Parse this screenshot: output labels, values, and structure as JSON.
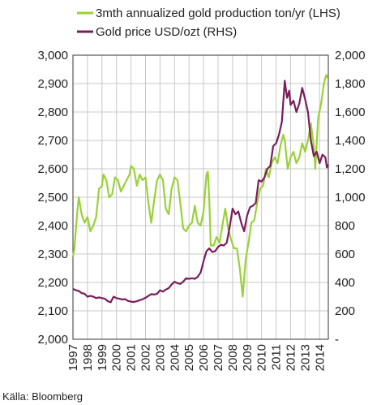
{
  "chart_data": {
    "type": "line",
    "title": "",
    "xlabel": "",
    "ylabel_left": "",
    "ylabel_right": "",
    "grid": true,
    "legend_position": "top-left",
    "source": "Källa: Bloomberg",
    "colors": {
      "production": "#99d137",
      "price": "#7b1c5b",
      "grid": "#c8c8c8",
      "axis": "#333333"
    },
    "x_categories": [
      "1997",
      "1998",
      "1999",
      "2000",
      "2001",
      "2002",
      "2003",
      "2004",
      "2005",
      "2006",
      "2007",
      "2008",
      "2009",
      "2010",
      "2011",
      "2012",
      "2013",
      "2014"
    ],
    "y_left": {
      "min": 2000,
      "max": 3000,
      "ticks": [
        2000,
        2100,
        2200,
        2300,
        2400,
        2500,
        2600,
        2700,
        2800,
        2900,
        3000
      ],
      "tick_labels": [
        "2,000",
        "2,100",
        "2,200",
        "2,300",
        "2,400",
        "2,500",
        "2,600",
        "2,700",
        "2,800",
        "2,900",
        "3,000"
      ]
    },
    "y_right": {
      "min": 0,
      "max": 2000,
      "ticks": [
        0,
        200,
        400,
        600,
        800,
        1000,
        1200,
        1400,
        1600,
        1800,
        2000
      ],
      "tick_labels": [
        "-",
        "200",
        "400",
        "600",
        "800",
        "1,000",
        "1,200",
        "1,400",
        "1,600",
        "1,800",
        "2,000"
      ]
    },
    "series": [
      {
        "name": "3mth annualized gold production ton/yr (LHS)",
        "axis": "left",
        "points": [
          [
            1997.0,
            2290
          ],
          [
            1997.1,
            2320
          ],
          [
            1997.3,
            2450
          ],
          [
            1997.4,
            2500
          ],
          [
            1997.6,
            2440
          ],
          [
            1997.8,
            2410
          ],
          [
            1998.0,
            2430
          ],
          [
            1998.2,
            2380
          ],
          [
            1998.4,
            2400
          ],
          [
            1998.6,
            2430
          ],
          [
            1998.8,
            2530
          ],
          [
            1999.0,
            2540
          ],
          [
            1999.1,
            2580
          ],
          [
            1999.3,
            2560
          ],
          [
            1999.5,
            2500
          ],
          [
            1999.7,
            2510
          ],
          [
            1999.9,
            2570
          ],
          [
            2000.1,
            2560
          ],
          [
            2000.3,
            2520
          ],
          [
            2000.5,
            2540
          ],
          [
            2000.7,
            2560
          ],
          [
            2000.9,
            2580
          ],
          [
            2001.0,
            2610
          ],
          [
            2001.2,
            2600
          ],
          [
            2001.4,
            2540
          ],
          [
            2001.6,
            2580
          ],
          [
            2001.8,
            2560
          ],
          [
            2002.0,
            2570
          ],
          [
            2002.2,
            2480
          ],
          [
            2002.4,
            2410
          ],
          [
            2002.6,
            2490
          ],
          [
            2002.8,
            2560
          ],
          [
            2003.0,
            2580
          ],
          [
            2003.2,
            2560
          ],
          [
            2003.4,
            2460
          ],
          [
            2003.6,
            2440
          ],
          [
            2003.8,
            2530
          ],
          [
            2004.0,
            2570
          ],
          [
            2004.2,
            2560
          ],
          [
            2004.4,
            2480
          ],
          [
            2004.6,
            2390
          ],
          [
            2004.8,
            2380
          ],
          [
            2005.0,
            2400
          ],
          [
            2005.2,
            2410
          ],
          [
            2005.4,
            2470
          ],
          [
            2005.6,
            2410
          ],
          [
            2005.8,
            2400
          ],
          [
            2006.0,
            2450
          ],
          [
            2006.2,
            2580
          ],
          [
            2006.3,
            2590
          ],
          [
            2006.4,
            2490
          ],
          [
            2006.5,
            2330
          ],
          [
            2006.7,
            2330
          ],
          [
            2006.9,
            2360
          ],
          [
            2007.1,
            2340
          ],
          [
            2007.3,
            2400
          ],
          [
            2007.5,
            2460
          ],
          [
            2007.7,
            2390
          ],
          [
            2007.9,
            2350
          ],
          [
            2008.1,
            2320
          ],
          [
            2008.3,
            2320
          ],
          [
            2008.5,
            2250
          ],
          [
            2008.7,
            2150
          ],
          [
            2008.9,
            2280
          ],
          [
            2009.1,
            2340
          ],
          [
            2009.3,
            2410
          ],
          [
            2009.5,
            2420
          ],
          [
            2009.7,
            2480
          ],
          [
            2009.9,
            2530
          ],
          [
            2010.1,
            2540
          ],
          [
            2010.3,
            2600
          ],
          [
            2010.5,
            2570
          ],
          [
            2010.7,
            2620
          ],
          [
            2010.9,
            2640
          ],
          [
            2011.1,
            2620
          ],
          [
            2011.3,
            2680
          ],
          [
            2011.5,
            2720
          ],
          [
            2011.6,
            2700
          ],
          [
            2011.8,
            2600
          ],
          [
            2012.0,
            2640
          ],
          [
            2012.2,
            2660
          ],
          [
            2012.4,
            2620
          ],
          [
            2012.6,
            2640
          ],
          [
            2012.8,
            2690
          ],
          [
            2013.0,
            2660
          ],
          [
            2013.2,
            2700
          ],
          [
            2013.4,
            2760
          ],
          [
            2013.6,
            2680
          ],
          [
            2013.7,
            2600
          ],
          [
            2013.9,
            2780
          ],
          [
            2014.1,
            2830
          ],
          [
            2014.3,
            2900
          ],
          [
            2014.45,
            2930
          ],
          [
            2014.55,
            2920
          ]
        ]
      },
      {
        "name": "Gold price USD/ozt (RHS)",
        "axis": "right",
        "points": [
          [
            1997.0,
            355
          ],
          [
            1997.2,
            345
          ],
          [
            1997.4,
            340
          ],
          [
            1997.6,
            325
          ],
          [
            1997.8,
            320
          ],
          [
            1998.0,
            300
          ],
          [
            1998.2,
            305
          ],
          [
            1998.4,
            300
          ],
          [
            1998.6,
            290
          ],
          [
            1998.8,
            295
          ],
          [
            1999.0,
            290
          ],
          [
            1999.2,
            285
          ],
          [
            1999.4,
            268
          ],
          [
            1999.6,
            260
          ],
          [
            1999.8,
            300
          ],
          [
            2000.0,
            290
          ],
          [
            2000.2,
            285
          ],
          [
            2000.4,
            280
          ],
          [
            2000.6,
            282
          ],
          [
            2000.8,
            270
          ],
          [
            2001.0,
            265
          ],
          [
            2001.2,
            262
          ],
          [
            2001.4,
            268
          ],
          [
            2001.6,
            275
          ],
          [
            2001.8,
            282
          ],
          [
            2002.0,
            292
          ],
          [
            2002.2,
            305
          ],
          [
            2002.4,
            318
          ],
          [
            2002.6,
            315
          ],
          [
            2002.8,
            320
          ],
          [
            2003.0,
            345
          ],
          [
            2003.2,
            335
          ],
          [
            2003.4,
            350
          ],
          [
            2003.6,
            360
          ],
          [
            2003.8,
            385
          ],
          [
            2004.0,
            405
          ],
          [
            2004.2,
            395
          ],
          [
            2004.4,
            390
          ],
          [
            2004.6,
            405
          ],
          [
            2004.8,
            430
          ],
          [
            2005.0,
            425
          ],
          [
            2005.2,
            430
          ],
          [
            2005.4,
            425
          ],
          [
            2005.6,
            440
          ],
          [
            2005.8,
            470
          ],
          [
            2006.0,
            550
          ],
          [
            2006.2,
            620
          ],
          [
            2006.4,
            640
          ],
          [
            2006.6,
            615
          ],
          [
            2006.8,
            620
          ],
          [
            2007.0,
            650
          ],
          [
            2007.2,
            665
          ],
          [
            2007.4,
            660
          ],
          [
            2007.6,
            680
          ],
          [
            2007.8,
            790
          ],
          [
            2008.0,
            920
          ],
          [
            2008.2,
            880
          ],
          [
            2008.4,
            900
          ],
          [
            2008.6,
            820
          ],
          [
            2008.8,
            760
          ],
          [
            2009.0,
            870
          ],
          [
            2009.2,
            930
          ],
          [
            2009.4,
            940
          ],
          [
            2009.6,
            960
          ],
          [
            2009.8,
            1120
          ],
          [
            2010.0,
            1110
          ],
          [
            2010.2,
            1140
          ],
          [
            2010.4,
            1200
          ],
          [
            2010.6,
            1220
          ],
          [
            2010.8,
            1360
          ],
          [
            2011.0,
            1380
          ],
          [
            2011.2,
            1440
          ],
          [
            2011.4,
            1530
          ],
          [
            2011.6,
            1820
          ],
          [
            2011.75,
            1700
          ],
          [
            2011.9,
            1750
          ],
          [
            2012.0,
            1650
          ],
          [
            2012.2,
            1680
          ],
          [
            2012.4,
            1600
          ],
          [
            2012.6,
            1660
          ],
          [
            2012.8,
            1770
          ],
          [
            2013.0,
            1690
          ],
          [
            2013.2,
            1600
          ],
          [
            2013.4,
            1400
          ],
          [
            2013.6,
            1290
          ],
          [
            2013.8,
            1320
          ],
          [
            2014.0,
            1240
          ],
          [
            2014.2,
            1300
          ],
          [
            2014.4,
            1280
          ],
          [
            2014.5,
            1210
          ],
          [
            2014.6,
            1230
          ]
        ]
      }
    ]
  }
}
